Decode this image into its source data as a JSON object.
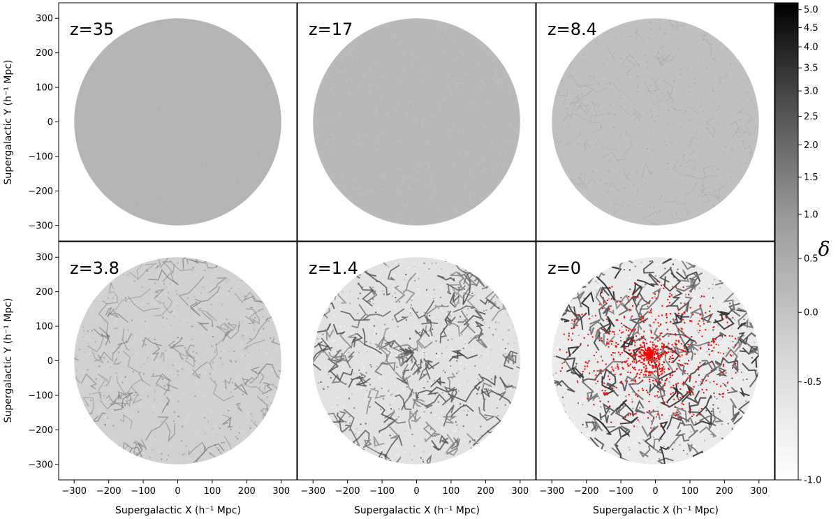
{
  "chart_data": {
    "type": "heatmap",
    "layout": "2x3 grid of density slices",
    "xlabel": "Supergalactic X (h⁻¹ Mpc)",
    "ylabel": "Supergalactic Y (h⁻¹ Mpc)",
    "xlim": [
      -345,
      345
    ],
    "ylim": [
      -345,
      345
    ],
    "xticks": [
      -300,
      -200,
      -100,
      0,
      100,
      200,
      300
    ],
    "yticks": [
      -300,
      -200,
      -100,
      0,
      100,
      200,
      300
    ],
    "xtick_labels": [
      "−300",
      "−200",
      "−100",
      "0",
      "100",
      "200",
      "300"
    ],
    "ytick_labels": [
      "−300",
      "−200",
      "−100",
      "0",
      "100",
      "200",
      "300"
    ],
    "disk_radius": 300,
    "colormap": "gray_r",
    "overlay_color": "#ff0000",
    "panels": [
      {
        "label": "z=35",
        "contrast": 0.05
      },
      {
        "label": "z=17",
        "contrast": 0.12
      },
      {
        "label": "z=8.4",
        "contrast": 0.25
      },
      {
        "label": "z=3.8",
        "contrast": 0.55
      },
      {
        "label": "z=1.4",
        "contrast": 0.85
      },
      {
        "label": "z=0",
        "contrast": 1.0,
        "overlay_points": true
      }
    ],
    "colorbar": {
      "label": "δ",
      "ticks": [
        -1.0,
        -0.5,
        0.0,
        0.5,
        1.0,
        1.5,
        2.0,
        2.5,
        3.0,
        3.5,
        4.0,
        4.5,
        5.0
      ],
      "tick_labels": [
        "-1.0",
        "-0.5",
        "0.0",
        "0.5",
        "1.0",
        "1.5",
        "2.0",
        "2.5",
        "3.0",
        "3.5",
        "4.0",
        "4.5",
        "5.0"
      ],
      "range": [
        -1.0,
        5.2
      ]
    }
  }
}
